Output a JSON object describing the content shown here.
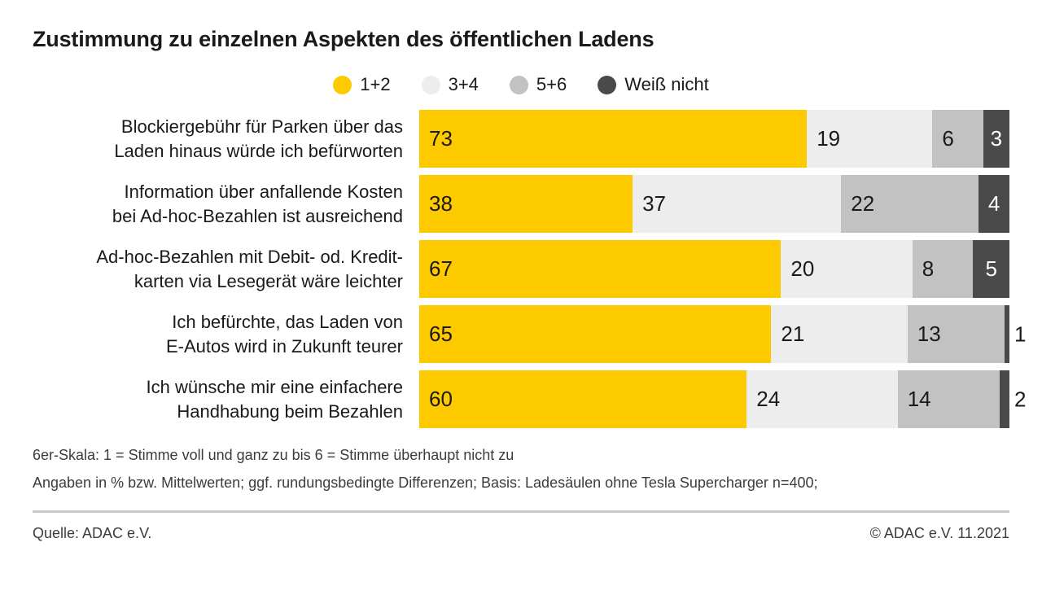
{
  "header": {
    "title": "Zustimmung zu einzelnen Aspekten des öffentlichen Ladens"
  },
  "colors": {
    "yellow": "#FDCA00",
    "light_gray": "#EDEDED",
    "mid_gray": "#C2C2C2",
    "dark_gray": "#4A4A4A",
    "text": "#1A1A1A",
    "footnote_text": "#3C3C3B",
    "divider": "#C9C9C9"
  },
  "legend": {
    "items": [
      {
        "label": "1+2",
        "color_key": "yellow"
      },
      {
        "label": "3+4",
        "color_key": "light_gray"
      },
      {
        "label": "5+6",
        "color_key": "mid_gray"
      },
      {
        "label": "Weiß nicht",
        "color_key": "dark_gray"
      }
    ]
  },
  "chart_data": {
    "type": "bar",
    "stacked": true,
    "orientation": "horizontal",
    "unit": "percent",
    "value_range": [
      0,
      100
    ],
    "grid": false,
    "legend_position": "top-center",
    "title": "Zustimmung zu einzelnen Aspekten des öffentlichen Ladens",
    "categories": [
      "Blockiergebühr für Parken über das Laden hinaus würde ich befürworten",
      "Information über anfallende Kosten bei Ad-hoc-Bezahlen ist ausreichend",
      "Ad-hoc-Bezahlen mit Debit- od. Kredit-karten via Lesegerät wäre leichter",
      "Ich befürchte, das Laden von E-Autos wird in Zukunft teurer",
      "Ich wünsche mir eine einfachere Handhabung beim Bezahlen"
    ],
    "category_lines": [
      [
        "Blockiergebühr für Parken über das",
        "Laden hinaus würde ich befürworten"
      ],
      [
        "Information über anfallende Kosten",
        "bei Ad-hoc-Bezahlen ist ausreichend"
      ],
      [
        "Ad-hoc-Bezahlen mit Debit- od. Kredit-",
        "karten via Lesegerät wäre leichter"
      ],
      [
        "Ich befürchte, das Laden von",
        "E-Autos wird in Zukunft teurer"
      ],
      [
        "Ich wünsche mir eine einfachere",
        "Handhabung beim Bezahlen"
      ]
    ],
    "series": [
      {
        "name": "1+2",
        "slug": "1-2",
        "color_key": "yellow",
        "values": [
          73,
          38,
          67,
          65,
          60
        ]
      },
      {
        "name": "3+4",
        "slug": "3-4",
        "color_key": "light_gray",
        "values": [
          19,
          37,
          20,
          21,
          24
        ]
      },
      {
        "name": "5+6",
        "slug": "5-6",
        "color_key": "mid_gray",
        "values": [
          6,
          22,
          8,
          13,
          14
        ]
      },
      {
        "name": "Weiß nicht",
        "slug": "weiss-nicht",
        "color_key": "dark_gray",
        "values": [
          3,
          4,
          5,
          1,
          2
        ]
      }
    ]
  },
  "footnotes": {
    "scale": "6er-Skala: 1 = Stimme voll und ganz zu bis 6 = Stimme überhaupt nicht zu",
    "basis": "Angaben in % bzw. Mittelwerten; ggf. rundungsbedingte Differenzen; Basis: Ladesäulen ohne Tesla Supercharger n=400;"
  },
  "footer": {
    "source": "Quelle: ADAC e.V.",
    "copyright": "© ADAC e.V. 11.2021"
  }
}
